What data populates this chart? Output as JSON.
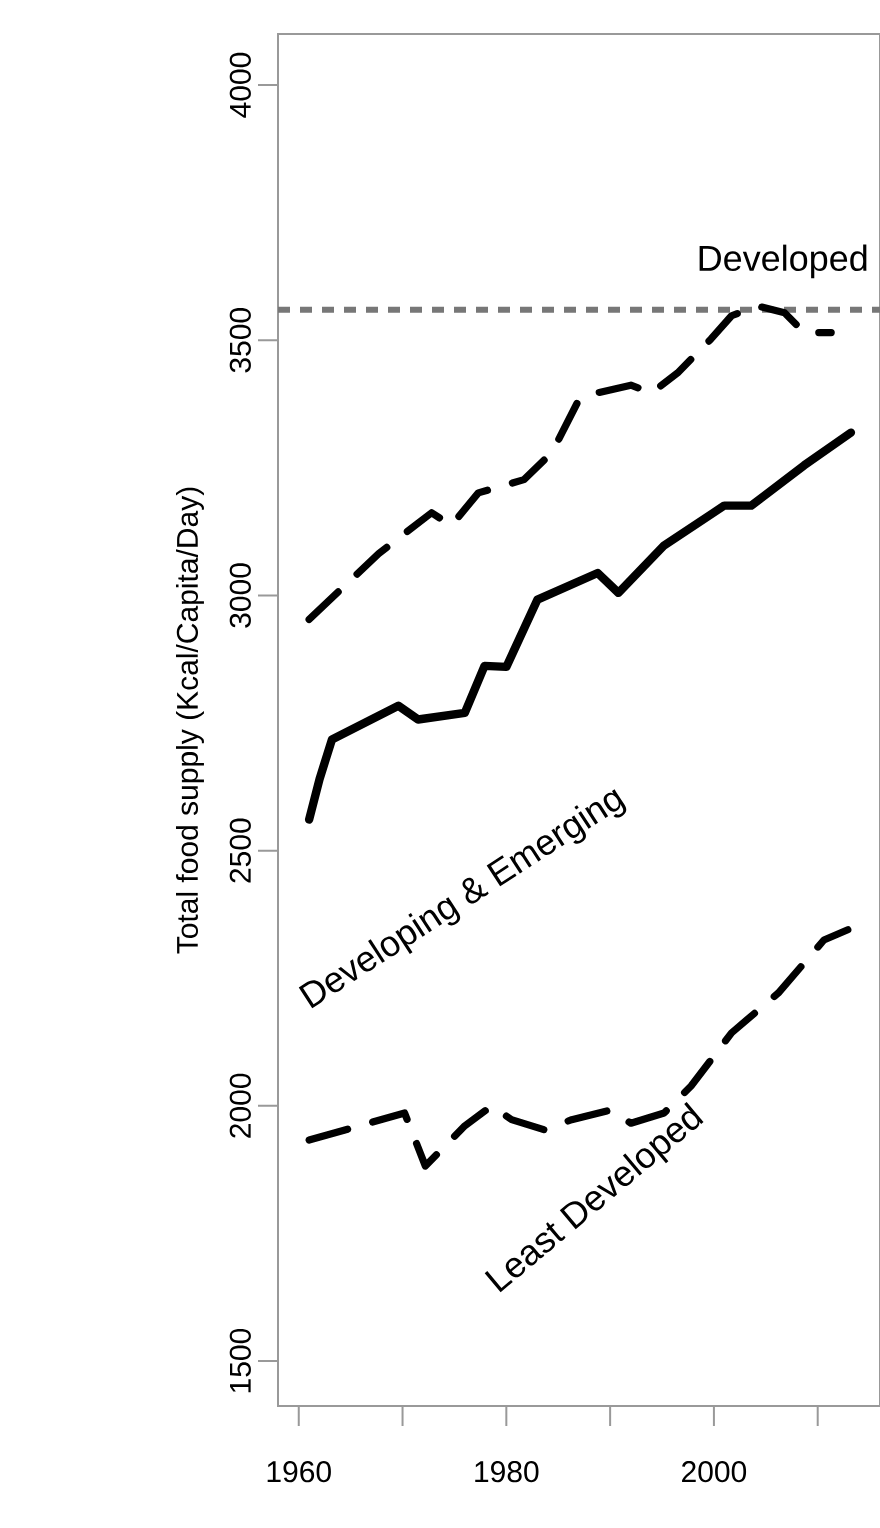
{
  "chart_data": {
    "type": "line",
    "ylabel": "Total food supply (Kcal/Capita/Day)",
    "xlim": [
      1958,
      2016
    ],
    "ylim": [
      1412,
      4100
    ],
    "xticks": [
      1960,
      {
        "value": 1970,
        "label": null
      },
      1980,
      {
        "value": 1990,
        "label": null
      },
      2000,
      {
        "value": 2010,
        "label": null
      }
    ],
    "yticks": [
      1500,
      2000,
      2500,
      3000,
      3500,
      4000
    ],
    "grid": false,
    "ref_lines": [
      {
        "axis": "y",
        "value": 3560,
        "color": "#777777",
        "line_style": "dotted"
      }
    ],
    "series": [
      {
        "name": "Developed",
        "color": "#000000",
        "line_style": "dashed",
        "x": [
          1961,
          1967.7,
          1972.8,
          1974.7,
          1977.3,
          1981.7,
          1984.4,
          1987,
          1988.8,
          1992,
          1994,
          1996.5,
          1999.7,
          2001.7,
          2004.2,
          2006.8,
          2008.7,
          2011.3
        ],
        "values": [
          2953,
          3082,
          3162,
          3137,
          3201,
          3227,
          3280,
          3384,
          3397,
          3412,
          3397,
          3436,
          3502,
          3548,
          3567,
          3554,
          3515,
          3515
        ]
      },
      {
        "name": "Developing & Emerging",
        "color": "#000000",
        "line_style": "solid",
        "x": [
          1961,
          1962,
          1963.2,
          1969.6,
          1971.5,
          1976,
          1977.9,
          1980,
          1983,
          1988.8,
          1990.8,
          1995.2,
          2001,
          2003.6,
          2008.7,
          2013.2
        ],
        "values": [
          2561,
          2640,
          2718,
          2784,
          2757,
          2770,
          2862,
          2860,
          2992,
          3044,
          3005,
          3098,
          3176,
          3176,
          3255,
          3319
        ]
      },
      {
        "name": "Least Developed",
        "color": "#000000",
        "line_style": "dashed",
        "x": [
          1961,
          1970.2,
          1972.2,
          1976,
          1978.6,
          1980.5,
          1983.7,
          1986.3,
          1990.1,
          1992,
          1995.2,
          1997.8,
          2001.7,
          2006.2,
          2010.6,
          2012.9
        ],
        "values": [
          1933,
          1986,
          1882,
          1961,
          2000,
          1973,
          1953,
          1973,
          1992,
          1966,
          1986,
          2039,
          2143,
          2221,
          2325,
          2345
        ]
      }
    ]
  }
}
